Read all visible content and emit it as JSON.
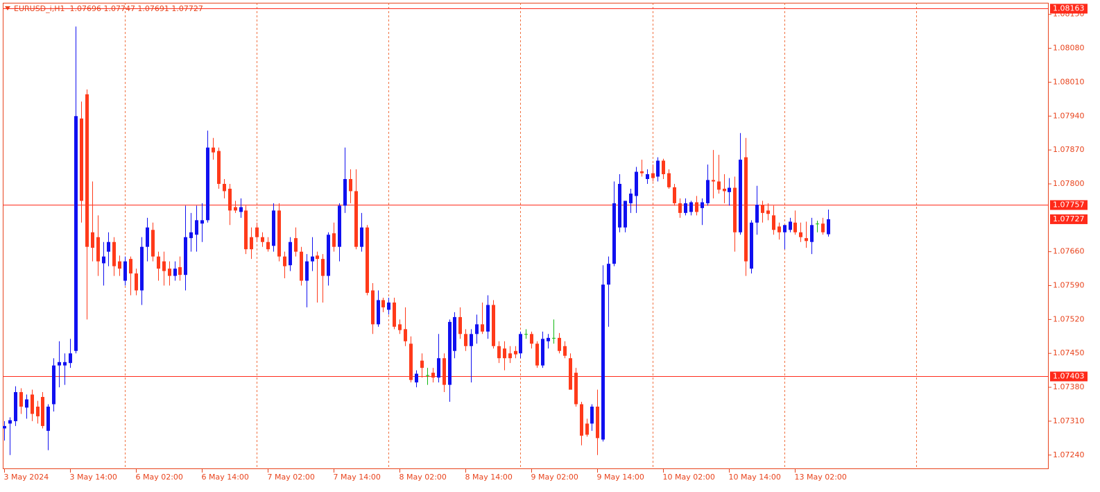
{
  "chart_data": {
    "type": "candlestick",
    "title": "EURUSD_i,H1  1.07696 1.07747 1.07691 1.07727",
    "up_color": "#1010f0",
    "down_color": "#ff3a1a",
    "doji_color": "#10b810",
    "axis_color": "#e8431c",
    "grid_color": "#f07040",
    "ylim": [
      1.07211,
      1.08174
    ],
    "yticks": [
      {
        "value": 1.0815,
        "label": "1.08150"
      },
      {
        "value": 1.0808,
        "label": "1.08080"
      },
      {
        "value": 1.0801,
        "label": "1.08010"
      },
      {
        "value": 1.0794,
        "label": "1.07940"
      },
      {
        "value": 1.0787,
        "label": "1.07870"
      },
      {
        "value": 1.078,
        "label": "1.07800"
      },
      {
        "value": 1.0766,
        "label": "1.07660"
      },
      {
        "value": 1.0759,
        "label": "1.07590"
      },
      {
        "value": 1.0752,
        "label": "1.07520"
      },
      {
        "value": 1.0745,
        "label": "1.07450"
      },
      {
        "value": 1.0738,
        "label": "1.07380"
      },
      {
        "value": 1.0731,
        "label": "1.07310"
      },
      {
        "value": 1.0724,
        "label": "1.07240"
      }
    ],
    "price_lines": [
      1.08163,
      1.07757,
      1.07403
    ],
    "current_price": 1.07727,
    "xlim": [
      -0.25,
      190.15
    ],
    "xticks": [
      {
        "value": 0,
        "label": "3 May 2024"
      },
      {
        "value": 12,
        "label": "3 May 14:00"
      },
      {
        "value": 24,
        "label": "6 May 02:00"
      },
      {
        "value": 36,
        "label": "6 May 14:00"
      },
      {
        "value": 48,
        "label": "7 May 02:00"
      },
      {
        "value": 60,
        "label": "7 May 14:00"
      },
      {
        "value": 72,
        "label": "8 May 02:00"
      },
      {
        "value": 84,
        "label": "8 May 14:00"
      },
      {
        "value": 96,
        "label": "9 May 02:00"
      },
      {
        "value": 108,
        "label": "9 May 14:00"
      },
      {
        "value": 120,
        "label": "10 May 02:00"
      },
      {
        "value": 132,
        "label": "10 May 14:00"
      },
      {
        "value": 144,
        "label": "13 May 02:00"
      }
    ],
    "xgrid": [
      22,
      46,
      70,
      94,
      118,
      142,
      166
    ],
    "open": [
      1.07295,
      1.07305,
      1.0731,
      1.0737,
      1.07338,
      1.07365,
      1.0734,
      1.0736,
      1.0729,
      1.07345,
      1.07425,
      1.07425,
      1.0743,
      1.07455,
      1.07935,
      1.07985,
      1.077,
      1.0769,
      1.07636,
      1.0766,
      1.0768,
      1.0764,
      1.076,
      1.07645,
      1.07615,
      1.0758,
      1.0767,
      1.07705,
      1.0765,
      1.0764,
      1.07625,
      1.0761,
      1.07628,
      1.07612,
      1.07688,
      1.07695,
      1.07718,
      1.07725,
      1.07875,
      1.07868,
      1.078,
      1.0779,
      1.07752,
      1.07742,
      1.07745,
      1.0769,
      1.0771,
      1.0769,
      1.0768,
      1.07672,
      1.07745,
      1.0765,
      1.07632,
      1.07688,
      1.0766,
      1.076,
      1.0764,
      1.07652,
      1.07645,
      1.0761,
      1.07698,
      1.0767,
      1.07755,
      1.0781,
      1.07785,
      1.0767,
      1.0771,
      1.0758,
      1.0751,
      1.0756,
      1.0754,
      1.07555,
      1.0751,
      1.075,
      1.0747,
      1.0739,
      1.07435,
      1.07405,
      1.0741,
      1.074,
      1.0744,
      1.07385,
      1.07455,
      1.07525,
      1.0749,
      1.07465,
      1.0749,
      1.0751,
      1.07495,
      1.0755,
      1.07465,
      1.0746,
      1.0745,
      1.07455,
      1.0745,
      1.0749,
      1.0749,
      1.0747,
      1.07425,
      1.07475,
      1.07482,
      1.07482,
      1.07465,
      1.0744,
      1.0741,
      1.07345,
      1.07305,
      1.07305,
      1.0734,
      1.07272,
      1.07592,
      1.07635,
      1.0771,
      1.0771,
      1.0776,
      1.07775,
      1.07826,
      1.0781,
      1.07822,
      1.07815,
      1.07848,
      1.07822,
      1.07793,
      1.0776,
      1.0774,
      1.07742,
      1.07762,
      1.0775,
      1.0776,
      1.07808,
      1.07805,
      1.0779,
      1.07783,
      1.07792,
      1.077,
      1.07855,
      1.07625,
      1.0772,
      1.07757,
      1.07745,
      1.07735,
      1.07712,
      1.077,
      1.07705,
      1.0772,
      1.077,
      1.07688,
      1.0768,
      1.07718,
      1.07718,
      1.07696
    ],
    "high": [
      1.0731,
      1.07318,
      1.07382,
      1.07378,
      1.07365,
      1.07375,
      1.07352,
      1.0737,
      1.07345,
      1.0744,
      1.07475,
      1.0745,
      1.0748,
      1.08125,
      1.0797,
      1.07995,
      1.07805,
      1.07735,
      1.0768,
      1.077,
      1.0769,
      1.07652,
      1.0765,
      1.0765,
      1.07625,
      1.0769,
      1.0773,
      1.0772,
      1.0766,
      1.0766,
      1.0764,
      1.0764,
      1.0765,
      1.07755,
      1.0774,
      1.07755,
      1.0776,
      1.0791,
      1.07895,
      1.07875,
      1.0781,
      1.078,
      1.07765,
      1.0777,
      1.07755,
      1.0771,
      1.0772,
      1.077,
      1.0769,
      1.0776,
      1.0776,
      1.0766,
      1.0769,
      1.0771,
      1.0767,
      1.07655,
      1.0769,
      1.0766,
      1.07655,
      1.077,
      1.0772,
      1.0776,
      1.07875,
      1.0783,
      1.0783,
      1.0774,
      1.07715,
      1.07595,
      1.0758,
      1.07565,
      1.07565,
      1.07565,
      1.0752,
      1.07545,
      1.07485,
      1.07415,
      1.0745,
      1.0742,
      1.0742,
      1.0749,
      1.0745,
      1.0752,
      1.07535,
      1.07545,
      1.075,
      1.075,
      1.0753,
      1.07555,
      1.0757,
      1.0756,
      1.07475,
      1.07475,
      1.07465,
      1.07465,
      1.07495,
      1.075,
      1.07495,
      1.07475,
      1.07495,
      1.0749,
      1.0752,
      1.07492,
      1.07475,
      1.0745,
      1.0742,
      1.0735,
      1.07315,
      1.07345,
      1.07375,
      1.07632,
      1.0765,
      1.07805,
      1.0782,
      1.07765,
      1.0779,
      1.07835,
      1.0785,
      1.0783,
      1.0784,
      1.07855,
      1.07852,
      1.0783,
      1.078,
      1.0777,
      1.0777,
      1.07765,
      1.07775,
      1.0777,
      1.0784,
      1.0787,
      1.0786,
      1.0782,
      1.07812,
      1.07815,
      1.07905,
      1.07895,
      1.07725,
      1.07796,
      1.07765,
      1.0776,
      1.07755,
      1.0772,
      1.07715,
      1.0773,
      1.07745,
      1.0772,
      1.07722,
      1.0773,
      1.07724,
      1.0773,
      1.07747
    ],
    "low": [
      1.0727,
      1.0724,
      1.073,
      1.07325,
      1.07315,
      1.0731,
      1.07305,
      1.07295,
      1.0725,
      1.0733,
      1.0738,
      1.07385,
      1.0742,
      1.0745,
      1.0772,
      1.0752,
      1.0764,
      1.0761,
      1.0759,
      1.0763,
      1.0761,
      1.0761,
      1.0759,
      1.0757,
      1.0757,
      1.0755,
      1.0764,
      1.0764,
      1.076,
      1.0759,
      1.0759,
      1.076,
      1.076,
      1.0758,
      1.0766,
      1.0766,
      1.0768,
      1.0772,
      1.0785,
      1.0779,
      1.0777,
      1.07715,
      1.0774,
      1.0773,
      1.07655,
      1.07645,
      1.0768,
      1.0767,
      1.0766,
      1.0766,
      1.0764,
      1.07605,
      1.0762,
      1.0765,
      1.0759,
      1.07545,
      1.0762,
      1.07555,
      1.07555,
      1.0759,
      1.0766,
      1.0764,
      1.0774,
      1.0776,
      1.07665,
      1.0766,
      1.0757,
      1.0749,
      1.07505,
      1.07535,
      1.0753,
      1.075,
      1.0749,
      1.07465,
      1.0739,
      1.0738,
      1.074,
      1.07385,
      1.0739,
      1.0739,
      1.0737,
      1.0735,
      1.0744,
      1.0748,
      1.07455,
      1.0739,
      1.0747,
      1.0749,
      1.0748,
      1.0746,
      1.0743,
      1.07415,
      1.0743,
      1.0744,
      1.0744,
      1.0748,
      1.0746,
      1.0742,
      1.0742,
      1.0746,
      1.0747,
      1.0745,
      1.0744,
      1.07375,
      1.0734,
      1.0726,
      1.07278,
      1.0729,
      1.0724,
      1.07268,
      1.07505,
      1.0763,
      1.077,
      1.077,
      1.0774,
      1.0774,
      1.07815,
      1.078,
      1.07805,
      1.07805,
      1.0781,
      1.0779,
      1.07755,
      1.0773,
      1.07735,
      1.07735,
      1.07735,
      1.07715,
      1.07755,
      1.0777,
      1.0778,
      1.0776,
      1.07755,
      1.0766,
      1.07695,
      1.0761,
      1.07615,
      1.07695,
      1.0772,
      1.07725,
      1.07695,
      1.07685,
      1.07665,
      1.077,
      1.07695,
      1.0768,
      1.07668,
      1.07655,
      1.077,
      1.07695,
      1.07691
    ],
    "close": [
      1.073,
      1.07312,
      1.0737,
      1.0734,
      1.07355,
      1.07325,
      1.0732,
      1.073,
      1.0734,
      1.07425,
      1.07432,
      1.07432,
      1.0745,
      1.0794,
      1.07765,
      1.0767,
      1.07668,
      1.0764,
      1.0765,
      1.0768,
      1.0763,
      1.07625,
      1.0764,
      1.07615,
      1.0758,
      1.0767,
      1.0771,
      1.0765,
      1.07625,
      1.0762,
      1.0761,
      1.07625,
      1.07612,
      1.0769,
      1.077,
      1.07725,
      1.07725,
      1.07875,
      1.07865,
      1.078,
      1.07785,
      1.07745,
      1.07745,
      1.07752,
      1.07665,
      1.07665,
      1.0769,
      1.0768,
      1.07665,
      1.07745,
      1.0765,
      1.0763,
      1.0768,
      1.0766,
      1.076,
      1.0764,
      1.0765,
      1.07645,
      1.0761,
      1.07695,
      1.0767,
      1.07755,
      1.0781,
      1.07785,
      1.0767,
      1.0771,
      1.07575,
      1.0751,
      1.0756,
      1.07545,
      1.07555,
      1.07505,
      1.07498,
      1.07475,
      1.07395,
      1.07408,
      1.0742,
      1.07405,
      1.074,
      1.0744,
      1.07385,
      1.07515,
      1.07525,
      1.0749,
      1.07465,
      1.0749,
      1.0751,
      1.07495,
      1.0755,
      1.07465,
      1.0744,
      1.0744,
      1.0744,
      1.07448,
      1.0749,
      1.0749,
      1.0747,
      1.07425,
      1.0748,
      1.07482,
      1.07482,
      1.07455,
      1.07445,
      1.07375,
      1.07345,
      1.0728,
      1.07282,
      1.0734,
      1.07275,
      1.07592,
      1.07635,
      1.0776,
      1.078,
      1.07765,
      1.0778,
      1.07825,
      1.07822,
      1.0782,
      1.07812,
      1.07848,
      1.0782,
      1.07793,
      1.0776,
      1.0774,
      1.0776,
      1.07762,
      1.07742,
      1.07762,
      1.07808,
      1.07805,
      1.07788,
      1.07785,
      1.07792,
      1.077,
      1.0785,
      1.0764,
      1.0772,
      1.07757,
      1.0774,
      1.07738,
      1.07705,
      1.077,
      1.07715,
      1.07722,
      1.077,
      1.0769,
      1.07682,
      1.07715,
      1.07718,
      1.077,
      1.07727
    ]
  }
}
